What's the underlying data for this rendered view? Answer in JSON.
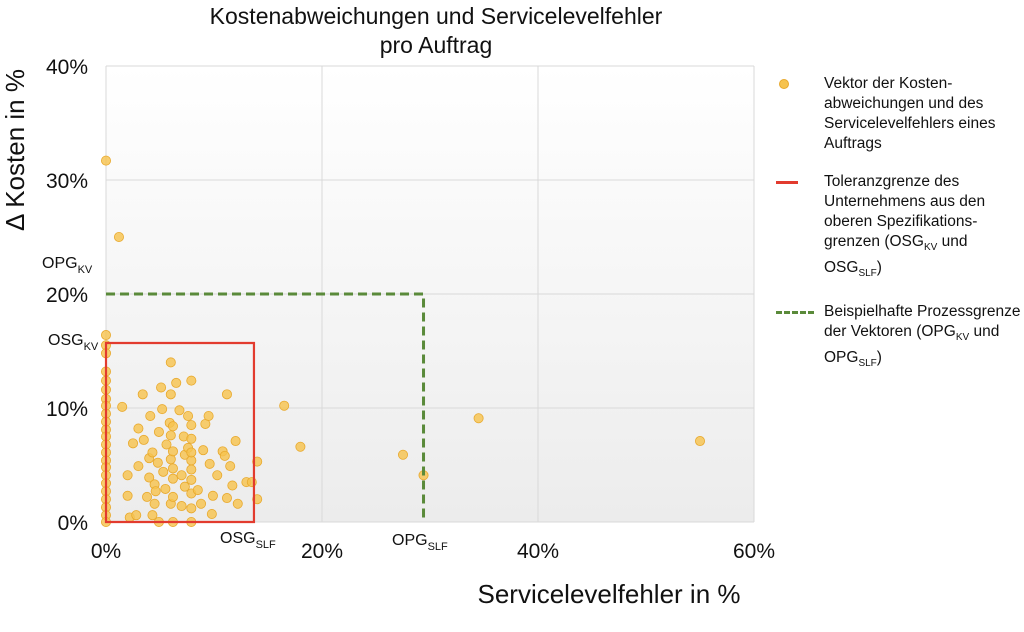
{
  "chart_data": {
    "type": "scatter",
    "title_line1": "Kostenabweichungen und Servicelevelfehler",
    "title_line2": "pro Auftrag",
    "xlabel": "Servicelevelfehler in %",
    "ylabel": "Δ Kosten in %",
    "xlim": [
      0,
      60
    ],
    "ylim": [
      0,
      40
    ],
    "x_ticks": [
      "0%",
      "20%",
      "40%",
      "60%"
    ],
    "y_ticks": [
      "0%",
      "10%",
      "20%",
      "30%",
      "40%"
    ],
    "grid": true,
    "legend_placement": "right",
    "series": [
      {
        "name": "Vektor der Kosten-abweichungen und des Servicelevelfehlers eines Auftrags",
        "color": "#f6c34f",
        "points": [
          [
            0,
            31.7
          ],
          [
            1.2,
            25
          ],
          [
            0,
            16.4
          ],
          [
            0,
            15.5
          ],
          [
            0,
            14.8
          ],
          [
            0,
            13.2
          ],
          [
            0,
            12.4
          ],
          [
            0,
            11.6
          ],
          [
            0,
            10.8
          ],
          [
            0,
            10.2
          ],
          [
            0,
            9.5
          ],
          [
            0,
            8.8
          ],
          [
            0,
            8.1
          ],
          [
            0,
            7.5
          ],
          [
            0,
            6.8
          ],
          [
            0,
            6.1
          ],
          [
            0,
            5.4
          ],
          [
            0,
            4.8
          ],
          [
            0,
            4.1
          ],
          [
            0,
            3.4
          ],
          [
            0,
            2.7
          ],
          [
            0,
            2
          ],
          [
            0,
            1.3
          ],
          [
            0,
            0.6
          ],
          [
            0,
            0
          ],
          [
            1.5,
            10.1
          ],
          [
            2,
            2.3
          ],
          [
            2,
            4.1
          ],
          [
            2.2,
            0.4
          ],
          [
            2.5,
            6.9
          ],
          [
            2.8,
            0.6
          ],
          [
            3,
            8.2
          ],
          [
            3,
            4.9
          ],
          [
            3.4,
            11.2
          ],
          [
            3.5,
            7.2
          ],
          [
            3.8,
            2.2
          ],
          [
            4,
            3.9
          ],
          [
            4,
            5.6
          ],
          [
            4.1,
            9.3
          ],
          [
            4.3,
            6.1
          ],
          [
            4.3,
            0.6
          ],
          [
            4.5,
            1.6
          ],
          [
            4.5,
            3.3
          ],
          [
            4.6,
            2.7
          ],
          [
            4.8,
            5.2
          ],
          [
            4.9,
            7.9
          ],
          [
            4.9,
            0
          ],
          [
            5.1,
            11.8
          ],
          [
            5.2,
            9.9
          ],
          [
            5.3,
            4.4
          ],
          [
            5.5,
            2.9
          ],
          [
            5.6,
            6.8
          ],
          [
            5.9,
            8.7
          ],
          [
            6,
            11.2
          ],
          [
            6,
            5.5
          ],
          [
            6,
            7.6
          ],
          [
            6,
            14
          ],
          [
            6,
            1.6
          ],
          [
            6.2,
            3.8
          ],
          [
            6.2,
            6.2
          ],
          [
            6.2,
            8.4
          ],
          [
            6.2,
            4.7
          ],
          [
            6.2,
            2.2
          ],
          [
            6.2,
            0
          ],
          [
            6.5,
            12.2
          ],
          [
            6.8,
            9.8
          ],
          [
            7,
            4.1
          ],
          [
            7,
            1.4
          ],
          [
            7.2,
            7.5
          ],
          [
            7.3,
            5.9
          ],
          [
            7.3,
            3.1
          ],
          [
            7.6,
            9.3
          ],
          [
            7.6,
            6.5
          ],
          [
            7.9,
            12.4
          ],
          [
            7.9,
            8.5
          ],
          [
            7.9,
            5.4
          ],
          [
            7.9,
            3.7
          ],
          [
            7.9,
            2.5
          ],
          [
            7.9,
            7.3
          ],
          [
            7.9,
            4.6
          ],
          [
            7.9,
            6.1
          ],
          [
            7.9,
            0
          ],
          [
            7.9,
            1.2
          ],
          [
            8.5,
            2.8
          ],
          [
            8.8,
            1.6
          ],
          [
            9,
            6.3
          ],
          [
            9.2,
            8.6
          ],
          [
            9.5,
            9.3
          ],
          [
            9.6,
            5.1
          ],
          [
            9.8,
            0.7
          ],
          [
            9.9,
            2.3
          ],
          [
            10.3,
            4.1
          ],
          [
            10.8,
            6.2
          ],
          [
            11,
            5.8
          ],
          [
            11.2,
            11.2
          ],
          [
            11.2,
            2.1
          ],
          [
            11.5,
            4.9
          ],
          [
            11.7,
            3.2
          ],
          [
            12,
            7.1
          ],
          [
            12.2,
            1.6
          ],
          [
            13,
            3.5
          ],
          [
            13.5,
            3.5
          ],
          [
            14,
            5.3
          ],
          [
            14,
            2
          ],
          [
            16.5,
            10.2
          ],
          [
            18,
            6.6
          ],
          [
            27.5,
            5.9
          ],
          [
            29.4,
            4.1
          ],
          [
            34.5,
            9.1
          ],
          [
            55,
            7.1
          ]
        ]
      }
    ],
    "osg_label": "OSG",
    "opg_label": "OPG",
    "kv_sub": "KV",
    "slf_sub": "SLF",
    "osg_kv": 15.7,
    "osg_slf": 13.7,
    "opg_kv": 20,
    "opg_slf": 29.4,
    "red_color": "#e23b2e",
    "green_color": "#5a8a3a"
  },
  "legend": {
    "item1_text": "Vektor der Kosten-abweichungen und des Servicelevelfehlers eines Auftrags",
    "item2_text_a": "Toleranzgrenze des Unternehmens aus den oberen Spezifikations-grenzen (OSG",
    "item2_sub1": "KV",
    "item2_text_b": " und OSG",
    "item2_sub2": "SLF",
    "item2_text_c": ")",
    "item3_text_a": "Beispielhafte Prozessgrenze der Vektoren (OPG",
    "item3_sub1": "KV",
    "item3_text_b": " und OPG",
    "item3_sub2": "SLF",
    "item3_text_c": ")"
  }
}
